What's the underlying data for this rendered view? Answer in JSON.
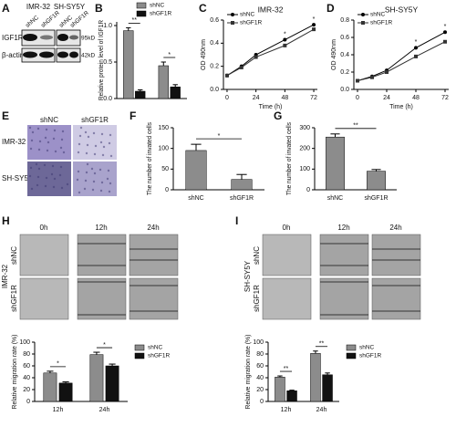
{
  "panel_labels": [
    "A",
    "B",
    "C",
    "D",
    "E",
    "F",
    "G",
    "H",
    "I"
  ],
  "blot": {
    "cell_lines": [
      "IMR-32",
      "SH-SY5Y"
    ],
    "lanes": [
      "shNC",
      "shGF1R",
      "shNC",
      "shGF1R"
    ],
    "proteins": [
      "IGF1R",
      "β-actin"
    ],
    "sizes": [
      "95kD",
      "42kD"
    ]
  },
  "invasion_images": {
    "columns": [
      "shNC",
      "shGF1R"
    ],
    "rows": [
      "IMR-32",
      "SH-SY5Y"
    ]
  },
  "wound_images": [
    {
      "cell_line": "IMR-32",
      "columns": [
        "0h",
        "12h",
        "24h"
      ],
      "rows": [
        "shNC",
        "shGF1R"
      ]
    },
    {
      "cell_line": "SH-SY5Y",
      "columns": [
        "0h",
        "12h",
        "24h"
      ],
      "rows": [
        "shNC",
        "shGF1R"
      ]
    }
  ],
  "chart_data": [
    {
      "type": "bar",
      "ylabel": "Relative protein level of IGF1R",
      "categories": [
        null,
        null
      ],
      "series": [
        {
          "name": "shNC",
          "color": "#8c8c8c",
          "values": [
            0.93,
            0.45
          ],
          "errors": [
            0.04,
            0.05
          ]
        },
        {
          "name": "shGF1R",
          "color": "#111111",
          "values": [
            0.1,
            0.16
          ],
          "errors": [
            0.02,
            0.03
          ]
        }
      ],
      "annotations": [
        "**",
        "*"
      ],
      "ylim": [
        0,
        1.05
      ],
      "yticks": [
        {
          "value": 0,
          "label": "0.0"
        },
        0.5,
        {
          "value": 1,
          "label": "1.0"
        }
      ],
      "legend": "top"
    },
    {
      "type": "line",
      "title": "IMR-32",
      "xlabel": "Time (h)",
      "ylabel": "OD 490nm",
      "x": [
        0,
        12,
        24,
        48,
        72
      ],
      "series": [
        {
          "name": "shNC",
          "color": "#000000",
          "marker": "circle",
          "values": [
            0.12,
            0.2,
            0.3,
            0.43,
            0.56
          ]
        },
        {
          "name": "shGF1R",
          "color": "#333333",
          "marker": "square",
          "values": [
            0.12,
            0.19,
            0.28,
            0.38,
            0.52
          ]
        }
      ],
      "xlim": [
        -3,
        75
      ],
      "xticks": [
        0,
        24,
        48,
        72
      ],
      "ylim": [
        0,
        0.6
      ],
      "yticks": [
        {
          "value": 0,
          "label": "0.0"
        },
        0.2,
        0.4,
        0.6
      ],
      "annotations": [
        {
          "x": 48,
          "text": "*"
        },
        {
          "x": 72,
          "text": "*"
        }
      ],
      "legend": "upper left"
    },
    {
      "type": "line",
      "title": "SH-SY5Y",
      "xlabel": "Time (h)",
      "ylabel": "OD 490nm",
      "x": [
        0,
        12,
        24,
        48,
        72
      ],
      "series": [
        {
          "name": "shNC",
          "color": "#000000",
          "marker": "circle",
          "values": [
            0.1,
            0.15,
            0.22,
            0.48,
            0.66
          ]
        },
        {
          "name": "shGF1R",
          "color": "#333333",
          "marker": "square",
          "values": [
            0.1,
            0.14,
            0.2,
            0.38,
            0.55
          ]
        }
      ],
      "xlim": [
        -3,
        75
      ],
      "xticks": [
        0,
        24,
        48,
        72
      ],
      "ylim": [
        0,
        0.8
      ],
      "yticks": [
        {
          "value": 0,
          "label": "0.0"
        },
        0.2,
        0.4,
        0.6,
        0.8
      ],
      "annotations": [
        {
          "x": 48,
          "text": "*"
        },
        {
          "x": 72,
          "text": "*"
        }
      ],
      "legend": "upper left"
    },
    {
      "type": "bar",
      "ylabel": "The number of invated cells",
      "categories": [
        "shNC",
        "shGF1R"
      ],
      "values": [
        95,
        25
      ],
      "errors": [
        15,
        12
      ],
      "color": "#8c8c8c",
      "annotations": [
        "*"
      ],
      "ylim": [
        0,
        150
      ],
      "yticks": [
        0,
        50,
        100,
        150
      ]
    },
    {
      "type": "bar",
      "ylabel": "The number of invated cells",
      "categories": [
        "shNC",
        "shGF1R"
      ],
      "values": [
        255,
        90
      ],
      "errors": [
        15,
        8
      ],
      "color": "#8c8c8c",
      "annotations": [
        "**"
      ],
      "ylim": [
        0,
        300
      ],
      "yticks": [
        0,
        100,
        200,
        300
      ]
    },
    {
      "type": "bar",
      "ylabel": "Relative migration rate (%)",
      "categories": [
        "12h",
        "24h"
      ],
      "series": [
        {
          "name": "shNC",
          "color": "#8c8c8c",
          "values": [
            48,
            79
          ],
          "errors": [
            3,
            4
          ]
        },
        {
          "name": "shGF1R",
          "color": "#111111",
          "values": [
            31,
            60
          ],
          "errors": [
            2,
            3
          ]
        }
      ],
      "annotations": [
        "*",
        "*"
      ],
      "ylim": [
        0,
        100
      ],
      "yticks": [
        0,
        20,
        40,
        60,
        80,
        100
      ],
      "legend": "right"
    },
    {
      "type": "bar",
      "ylabel": "Relative migration rate (%)",
      "categories": [
        "12h",
        "24h"
      ],
      "series": [
        {
          "name": "shNC",
          "color": "#8c8c8c",
          "values": [
            41,
            81
          ],
          "errors": [
            2,
            4
          ]
        },
        {
          "name": "shGF1R",
          "color": "#111111",
          "values": [
            18,
            45
          ],
          "errors": [
            1,
            3
          ]
        }
      ],
      "annotations": [
        "**",
        "**"
      ],
      "ylim": [
        0,
        100
      ],
      "yticks": [
        0,
        20,
        40,
        60,
        80,
        100
      ],
      "legend": "right"
    }
  ]
}
